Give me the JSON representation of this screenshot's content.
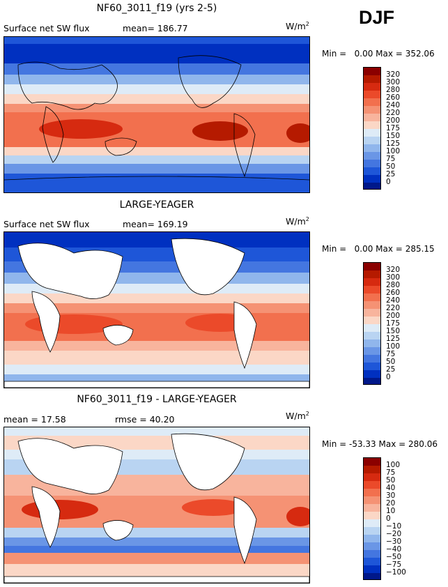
{
  "season": "DJF",
  "panels": [
    {
      "title": "NF60_3011_f19 (yrs 2-5)",
      "variable": "Surface net SW flux",
      "stat": "mean= 186.77",
      "units": "W/m",
      "units_exp": "2",
      "min_label": "Min =",
      "min_value": "0.00",
      "max_label": "Max =",
      "max_value": "352.06",
      "colorbar_labels": [
        "320",
        "300",
        "280",
        "260",
        "240",
        "220",
        "200",
        "175",
        "150",
        "125",
        "100",
        "75",
        "50",
        "25",
        "0"
      ]
    },
    {
      "title": "LARGE-YEAGER",
      "variable": "Surface net SW flux",
      "stat": "mean= 169.19",
      "units": "W/m",
      "units_exp": "2",
      "min_label": "Min =",
      "min_value": "0.00",
      "max_label": "Max =",
      "max_value": "285.15",
      "colorbar_labels": [
        "320",
        "300",
        "280",
        "260",
        "240",
        "220",
        "200",
        "175",
        "150",
        "125",
        "100",
        "75",
        "50",
        "25",
        "0"
      ]
    },
    {
      "title": "NF60_3011_f19 - LARGE-YEAGER",
      "mean_text": "mean =  17.58",
      "rmse_text": "rmse =  40.20",
      "units": "W/m",
      "units_exp": "2",
      "min_label": "Min =",
      "min_value": "-53.33",
      "max_label": "Max =",
      "max_value": "280.06",
      "colorbar_labels": [
        "100",
        "75",
        "50",
        "40",
        "30",
        "20",
        "10",
        "0",
        "−10",
        "−20",
        "−30",
        "−40",
        "−50",
        "−75",
        "−100"
      ]
    }
  ],
  "colors": {
    "abs_scale": [
      "#8b0000",
      "#b51a00",
      "#d62a10",
      "#eb4a2a",
      "#f2704e",
      "#f59274",
      "#f8b49d",
      "#fbd7c6",
      "#deebf7",
      "#b9d4f2",
      "#90b6ec",
      "#6a96e6",
      "#4476e0",
      "#1e56d8",
      "#0030c0",
      "#00188a"
    ],
    "diff_scale": [
      "#8b0000",
      "#b51a00",
      "#d62a10",
      "#eb4a2a",
      "#f2704e",
      "#f59274",
      "#f8b49d",
      "#fbd7c6",
      "#deebf7",
      "#b9d4f2",
      "#90b6ec",
      "#6a96e6",
      "#4476e0",
      "#1e56d8",
      "#0030c0",
      "#00188a"
    ]
  }
}
